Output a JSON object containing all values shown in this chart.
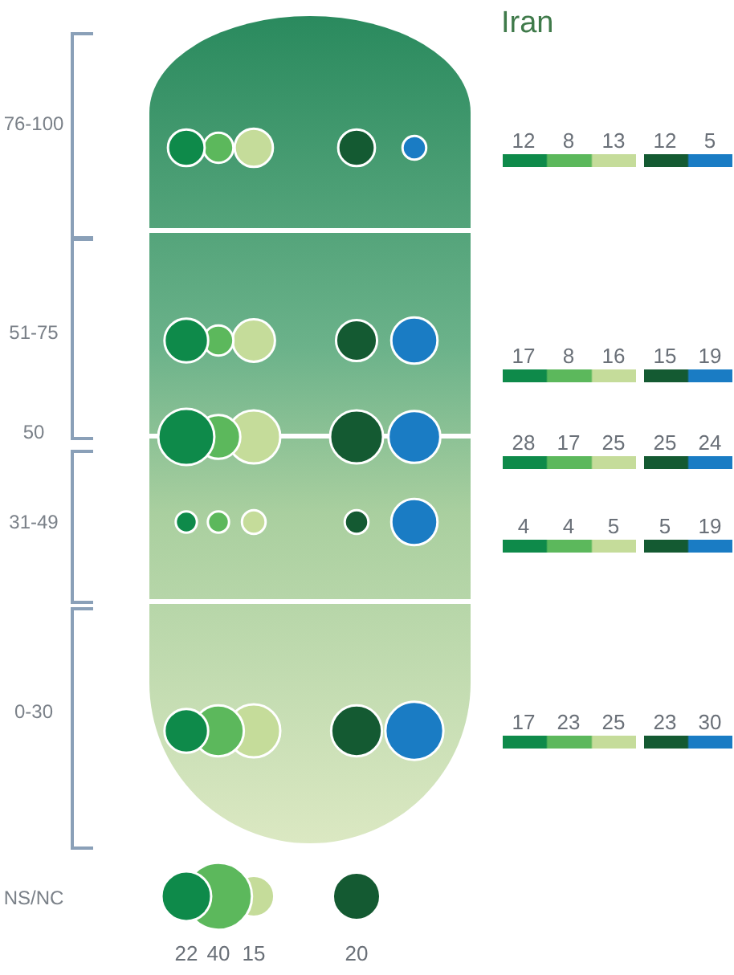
{
  "chart_data": {
    "type": "other",
    "title": "Iran",
    "data_labels": true,
    "categories": [
      "76-100",
      "51-75",
      "50",
      "31-49",
      "0-30",
      "NS/NC"
    ],
    "series": [
      {
        "color": "#0e8a4a",
        "values": [
          12,
          17,
          28,
          4,
          17,
          22
        ]
      },
      {
        "color": "#5cb85c",
        "values": [
          8,
          8,
          17,
          4,
          23,
          40
        ]
      },
      {
        "color": "#c5dc9a",
        "values": [
          13,
          16,
          25,
          5,
          25,
          15
        ]
      },
      {
        "color": "#145a32",
        "values": [
          12,
          15,
          25,
          5,
          23,
          20
        ]
      },
      {
        "color": "#1a7cc4",
        "values": [
          5,
          19,
          24,
          19,
          30,
          null
        ]
      }
    ]
  }
}
